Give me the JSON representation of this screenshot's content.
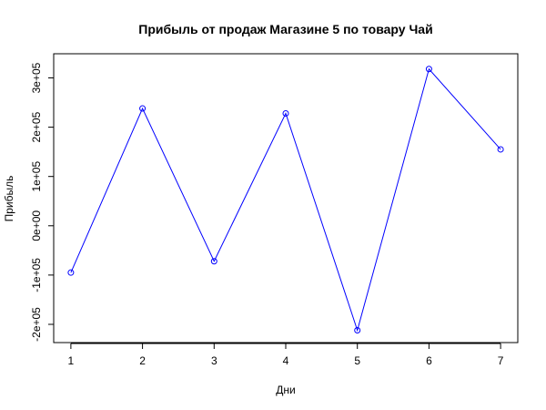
{
  "chart_data": {
    "type": "line",
    "title": "Прибыль от продаж Магазине 5 по товару Чай",
    "xlabel": "Дни",
    "ylabel": "Прибыль",
    "x": [
      1,
      2,
      3,
      4,
      5,
      6,
      7
    ],
    "x_ticks": [
      "1",
      "2",
      "3",
      "4",
      "5",
      "6",
      "7"
    ],
    "y_ticks": [
      {
        "value": -200000,
        "label": "-2e+05"
      },
      {
        "value": -100000,
        "label": "-1e+05"
      },
      {
        "value": 0,
        "label": "0e+00"
      },
      {
        "value": 100000,
        "label": "1e+05"
      },
      {
        "value": 200000,
        "label": "2e+05"
      },
      {
        "value": 300000,
        "label": "3e+05"
      }
    ],
    "xlim": [
      0.76,
      7.24
    ],
    "ylim": [
      -237000,
      349000
    ],
    "grid": false,
    "series": [
      {
        "color": "#0000ff",
        "marker": "open-circle",
        "values": [
          -95000,
          238000,
          -72000,
          228000,
          -212000,
          318000,
          155000
        ]
      }
    ]
  }
}
